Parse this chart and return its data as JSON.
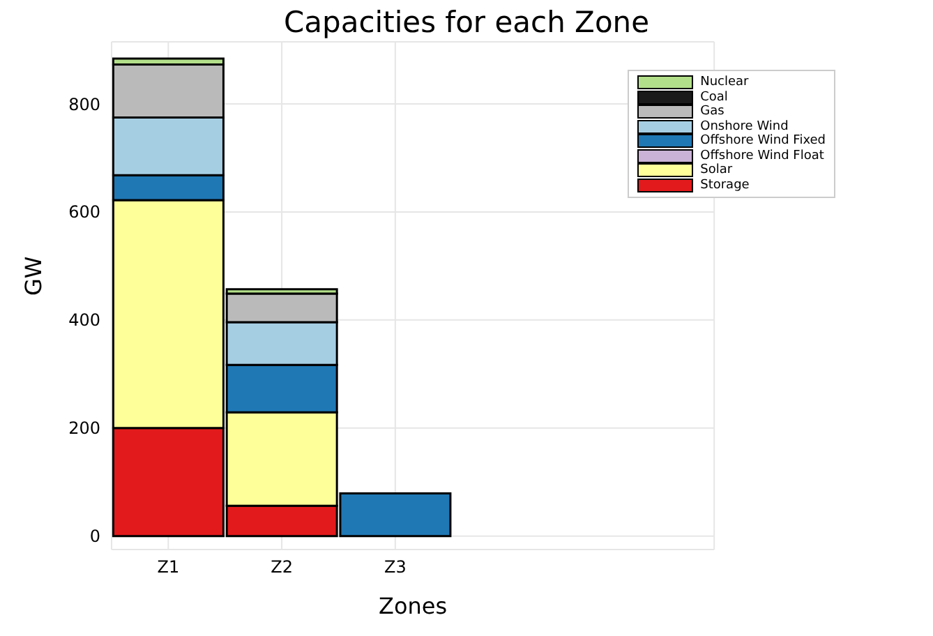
{
  "chart_data": {
    "type": "bar",
    "title": "Capacities for each Zone",
    "xlabel": "Zones",
    "ylabel": "GW",
    "categories": [
      "Z1",
      "Z2",
      "Z3"
    ],
    "stacked": true,
    "series": [
      {
        "name": "Storage",
        "color": "#e31a1c",
        "values": [
          200,
          56,
          0
        ]
      },
      {
        "name": "Solar",
        "color": "#ffff99",
        "values": [
          422,
          173,
          0
        ]
      },
      {
        "name": "Offshore Wind Float",
        "color": "#cab2d6",
        "values": [
          0,
          0,
          0
        ]
      },
      {
        "name": "Offshore Wind Fixed",
        "color": "#1f78b4",
        "values": [
          46,
          88,
          79
        ]
      },
      {
        "name": "Onshore Wind",
        "color": "#a6cee3",
        "values": [
          107,
          79,
          0
        ]
      },
      {
        "name": "Gas",
        "color": "#bababa",
        "values": [
          98,
          53,
          0
        ]
      },
      {
        "name": "Coal",
        "color": "#1a1a1a",
        "values": [
          0,
          0,
          0
        ]
      },
      {
        "name": "Nuclear",
        "color": "#b2df8a",
        "values": [
          11,
          8,
          0
        ]
      }
    ],
    "ylim": [
      -25,
      915
    ],
    "yticks": [
      0,
      200,
      400,
      600,
      800
    ],
    "grid": true,
    "legend": "top right"
  }
}
